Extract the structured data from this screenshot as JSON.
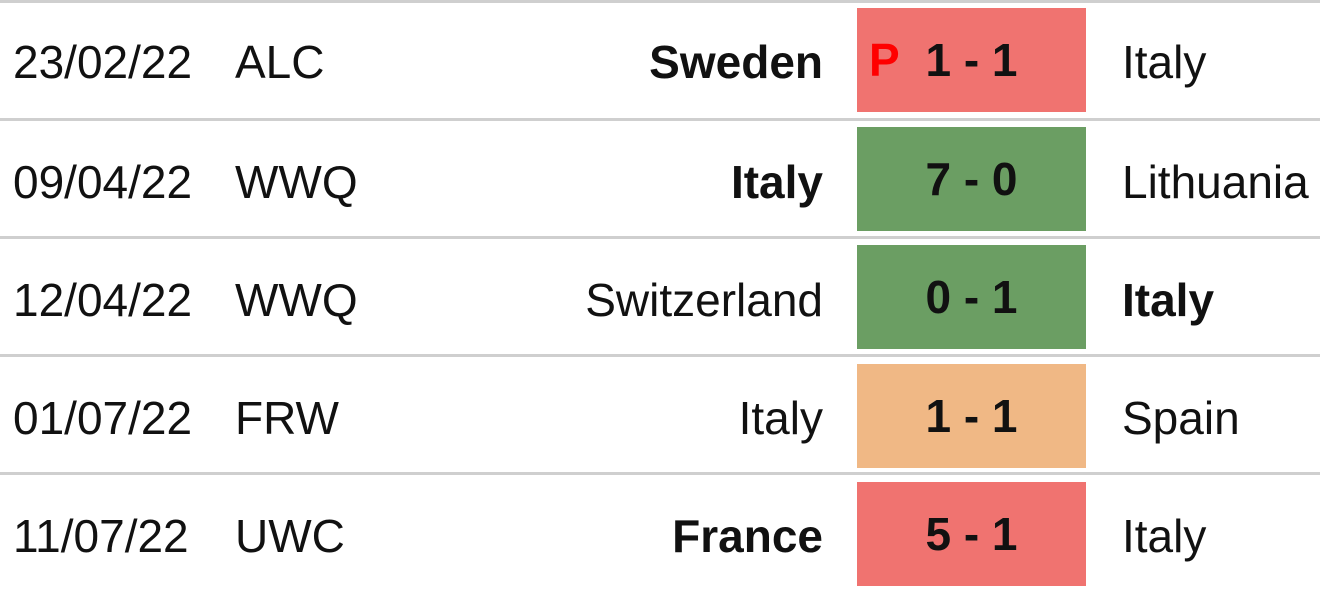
{
  "colors": {
    "loss": "#f07370",
    "win": "#6b9e63",
    "draw": "#f0b885",
    "penalty_marker": "#ff0000",
    "divider": "#cfcfcf"
  },
  "matches": [
    {
      "date": "23/02/22",
      "competition": "ALC",
      "home": "Sweden",
      "home_bold": true,
      "score": "1 - 1",
      "penalty": "P",
      "result": "loss",
      "away": "Italy",
      "away_bold": false
    },
    {
      "date": "09/04/22",
      "competition": "WWQ",
      "home": "Italy",
      "home_bold": true,
      "score": "7 - 0",
      "penalty": "",
      "result": "win",
      "away": "Lithuania",
      "away_bold": false
    },
    {
      "date": "12/04/22",
      "competition": "WWQ",
      "home": "Switzerland",
      "home_bold": false,
      "score": "0 - 1",
      "penalty": "",
      "result": "win",
      "away": "Italy",
      "away_bold": true
    },
    {
      "date": "01/07/22",
      "competition": "FRW",
      "home": "Italy",
      "home_bold": false,
      "score": "1 - 1",
      "penalty": "",
      "result": "draw",
      "away": "Spain",
      "away_bold": false
    },
    {
      "date": "11/07/22",
      "competition": "UWC",
      "home": "France",
      "home_bold": true,
      "score": "5 - 1",
      "penalty": "",
      "result": "loss",
      "away": "Italy",
      "away_bold": false
    }
  ]
}
